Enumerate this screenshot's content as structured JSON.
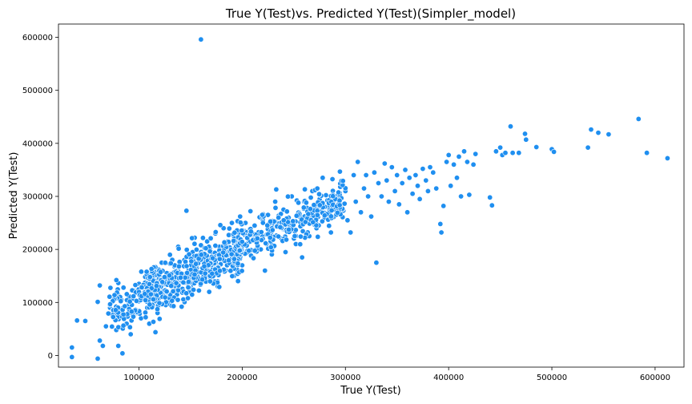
{
  "chart_data": {
    "type": "scatter",
    "title": "True Y(Test)vs. Predicted Y(Test)(Simpler_model)",
    "xlabel": "True Y(Test)",
    "ylabel": "Predicted Y(Test)",
    "xlim": [
      22000,
      628000
    ],
    "ylim": [
      -22000,
      625000
    ],
    "xticks": [
      100000,
      200000,
      300000,
      400000,
      500000,
      600000
    ],
    "yticks": [
      0,
      100000,
      200000,
      300000,
      400000,
      500000,
      600000
    ],
    "grid": false,
    "legend": "none",
    "color": "#1f8ff0",
    "points": [
      [
        35000,
        15000
      ],
      [
        35000,
        -3000
      ],
      [
        40000,
        66000
      ],
      [
        48000,
        65000
      ],
      [
        60000,
        101000
      ],
      [
        62000,
        132000
      ],
      [
        62000,
        28000
      ],
      [
        60000,
        -6000
      ],
      [
        65000,
        18000
      ],
      [
        68000,
        55000
      ],
      [
        72000,
        90000
      ],
      [
        75000,
        72000
      ],
      [
        78000,
        48000
      ],
      [
        80000,
        18000
      ],
      [
        82000,
        85000
      ],
      [
        84000,
        4000
      ],
      [
        85000,
        128000
      ],
      [
        88000,
        60000
      ],
      [
        90000,
        95000
      ],
      [
        92000,
        40000
      ],
      [
        95000,
        122000
      ],
      [
        98000,
        80000
      ],
      [
        100000,
        135000
      ],
      [
        102000,
        70000
      ],
      [
        104000,
        110000
      ],
      [
        106000,
        148000
      ],
      [
        108000,
        90000
      ],
      [
        110000,
        60000
      ],
      [
        112000,
        125000
      ],
      [
        114000,
        160000
      ],
      [
        116000,
        100000
      ],
      [
        118000,
        80000
      ],
      [
        120000,
        140000
      ],
      [
        122000,
        175000
      ],
      [
        124000,
        115000
      ],
      [
        126000,
        95000
      ],
      [
        128000,
        155000
      ],
      [
        130000,
        190000
      ],
      [
        132000,
        130000
      ],
      [
        134000,
        110000
      ],
      [
        136000,
        168000
      ],
      [
        138000,
        205000
      ],
      [
        140000,
        145000
      ],
      [
        142000,
        120000
      ],
      [
        144000,
        180000
      ],
      [
        146000,
        273000
      ],
      [
        148000,
        160000
      ],
      [
        150000,
        130000
      ],
      [
        152000,
        195000
      ],
      [
        154000,
        222000
      ],
      [
        156000,
        170000
      ],
      [
        158000,
        140000
      ],
      [
        160000,
        208000
      ],
      [
        160000,
        596000
      ],
      [
        162000,
        185000
      ],
      [
        164000,
        150000
      ],
      [
        166000,
        215000
      ],
      [
        168000,
        120000
      ],
      [
        170000,
        195000
      ],
      [
        172000,
        165000
      ],
      [
        174000,
        230000
      ],
      [
        176000,
        140000
      ],
      [
        178000,
        205000
      ],
      [
        180000,
        178000
      ],
      [
        182000,
        240000
      ],
      [
        184000,
        160000
      ],
      [
        186000,
        215000
      ],
      [
        188000,
        190000
      ],
      [
        190000,
        250000
      ],
      [
        192000,
        150000
      ],
      [
        194000,
        225000
      ],
      [
        196000,
        200000
      ],
      [
        198000,
        262000
      ],
      [
        200000,
        170000
      ],
      [
        202000,
        235000
      ],
      [
        205000,
        210000
      ],
      [
        208000,
        272000
      ],
      [
        210000,
        185000
      ],
      [
        212000,
        245000
      ],
      [
        215000,
        222000
      ],
      [
        218000,
        200000
      ],
      [
        220000,
        255000
      ],
      [
        222000,
        160000
      ],
      [
        225000,
        265000
      ],
      [
        228000,
        232000
      ],
      [
        230000,
        205000
      ],
      [
        232000,
        290000
      ],
      [
        235000,
        248000
      ],
      [
        238000,
        220000
      ],
      [
        240000,
        275000
      ],
      [
        242000,
        195000
      ],
      [
        245000,
        260000
      ],
      [
        248000,
        300000
      ],
      [
        250000,
        235000
      ],
      [
        252000,
        210000
      ],
      [
        255000,
        270000
      ],
      [
        258000,
        185000
      ],
      [
        260000,
        290000
      ],
      [
        262000,
        255000
      ],
      [
        265000,
        225000
      ],
      [
        268000,
        310000
      ],
      [
        270000,
        265000
      ],
      [
        272000,
        240000
      ],
      [
        275000,
        295000
      ],
      [
        278000,
        335000
      ],
      [
        280000,
        260000
      ],
      [
        283000,
        280000
      ],
      [
        286000,
        232000
      ],
      [
        290000,
        300000
      ],
      [
        292000,
        270000
      ],
      [
        295000,
        318000
      ],
      [
        298000,
        285000
      ],
      [
        300000,
        310000
      ],
      [
        302000,
        255000
      ],
      [
        305000,
        232000
      ],
      [
        308000,
        340000
      ],
      [
        310000,
        290000
      ],
      [
        312000,
        365000
      ],
      [
        315000,
        270000
      ],
      [
        318000,
        315000
      ],
      [
        320000,
        340000
      ],
      [
        322000,
        300000
      ],
      [
        325000,
        262000
      ],
      [
        328000,
        345000
      ],
      [
        330000,
        175000
      ],
      [
        332000,
        325000
      ],
      [
        335000,
        300000
      ],
      [
        338000,
        362000
      ],
      [
        340000,
        330000
      ],
      [
        342000,
        290000
      ],
      [
        345000,
        355000
      ],
      [
        348000,
        310000
      ],
      [
        350000,
        340000
      ],
      [
        352000,
        285000
      ],
      [
        355000,
        325000
      ],
      [
        358000,
        350000
      ],
      [
        360000,
        270000
      ],
      [
        362000,
        335000
      ],
      [
        365000,
        305000
      ],
      [
        368000,
        340000
      ],
      [
        370000,
        320000
      ],
      [
        372000,
        295000
      ],
      [
        375000,
        352000
      ],
      [
        378000,
        330000
      ],
      [
        380000,
        310000
      ],
      [
        382000,
        355000
      ],
      [
        385000,
        345000
      ],
      [
        388000,
        315000
      ],
      [
        392000,
        248000
      ],
      [
        393000,
        232000
      ],
      [
        395000,
        282000
      ],
      [
        398000,
        365000
      ],
      [
        400000,
        378000
      ],
      [
        402000,
        320000
      ],
      [
        405000,
        360000
      ],
      [
        408000,
        335000
      ],
      [
        410000,
        375000
      ],
      [
        412000,
        300000
      ],
      [
        415000,
        385000
      ],
      [
        418000,
        365000
      ],
      [
        420000,
        303000
      ],
      [
        424000,
        360000
      ],
      [
        426000,
        380000
      ],
      [
        440000,
        298000
      ],
      [
        442000,
        283000
      ],
      [
        446000,
        385000
      ],
      [
        450000,
        392000
      ],
      [
        452000,
        378000
      ],
      [
        455000,
        382000
      ],
      [
        460000,
        432000
      ],
      [
        462000,
        382000
      ],
      [
        468000,
        382000
      ],
      [
        474000,
        418000
      ],
      [
        475000,
        407000
      ],
      [
        485000,
        393000
      ],
      [
        500000,
        389000
      ],
      [
        502000,
        384000
      ],
      [
        535000,
        392000
      ],
      [
        538000,
        426000
      ],
      [
        545000,
        420000
      ],
      [
        555000,
        417000
      ],
      [
        584000,
        446000
      ],
      [
        592000,
        382000
      ],
      [
        612000,
        372000
      ]
    ]
  }
}
